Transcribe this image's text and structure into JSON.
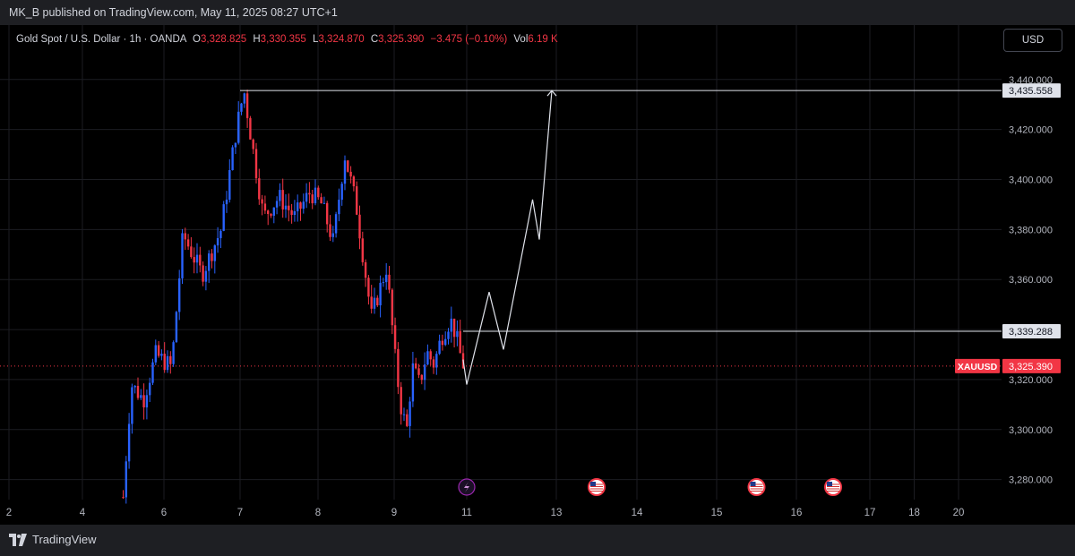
{
  "publisher": "MK_B published on TradingView.com, May 11, 2025 08:27 UTC+1",
  "legend": {
    "symbol": "Gold Spot / U.S. Dollar · 1h · OANDA",
    "open_label": "O",
    "open": "3,328.825",
    "high_label": "H",
    "high": "3,330.355",
    "low_label": "L",
    "low": "3,324.870",
    "close_label": "C",
    "close": "3,325.390",
    "change": "−3.475 (−0.10%)",
    "vol_label": "Vol",
    "vol": "6.19 K"
  },
  "currency": "USD",
  "footer": {
    "brand": "TradingView"
  },
  "colors": {
    "up": "#2962ff",
    "down": "#f23645",
    "line": "#e0e3eb",
    "background": "#000000"
  },
  "chart_data": {
    "type": "candlestick",
    "title": "",
    "symbol": "XAUUSD",
    "interval": "1h",
    "x_ticks": [
      {
        "day": 2,
        "label": "2"
      },
      {
        "day": 4,
        "label": "4"
      },
      {
        "day": 6,
        "label": "6"
      },
      {
        "day": 7,
        "label": "7"
      },
      {
        "day": 8,
        "label": "8"
      },
      {
        "day": 9,
        "label": "9"
      },
      {
        "day": 11,
        "label": "11"
      },
      {
        "day": 13,
        "label": "13"
      },
      {
        "day": 14,
        "label": "14"
      },
      {
        "day": 15,
        "label": "15"
      },
      {
        "day": 16,
        "label": "16"
      },
      {
        "day": 17,
        "label": "17"
      },
      {
        "day": 18,
        "label": "18"
      },
      {
        "day": 20,
        "label": "20"
      }
    ],
    "y_ticks": [
      "3,280.000",
      "3,300.000",
      "3,320.000",
      "3,340.000",
      "3,360.000",
      "3,380.000",
      "3,400.000",
      "3,420.000",
      "3,440.000"
    ],
    "ylim": [
      3272,
      3446
    ],
    "grid": true,
    "price_path": [
      [
        5.0,
        3273
      ],
      [
        5.2,
        3318
      ],
      [
        5.5,
        3312
      ],
      [
        5.8,
        3330
      ],
      [
        6.1,
        3325
      ],
      [
        6.25,
        3378
      ],
      [
        6.5,
        3362
      ],
      [
        6.75,
        3380
      ],
      [
        6.95,
        3420
      ],
      [
        7.05,
        3435.6
      ],
      [
        7.15,
        3415
      ],
      [
        7.3,
        3385
      ],
      [
        7.5,
        3393
      ],
      [
        7.7,
        3385
      ],
      [
        7.9,
        3395
      ],
      [
        8.05,
        3390
      ],
      [
        8.2,
        3375
      ],
      [
        8.35,
        3410
      ],
      [
        8.5,
        3390
      ],
      [
        8.7,
        3345
      ],
      [
        8.9,
        3365
      ],
      [
        9.05,
        3325
      ],
      [
        9.2,
        3308
      ],
      [
        9.35,
        3300
      ],
      [
        9.5,
        3325
      ],
      [
        9.7,
        3318
      ],
      [
        9.9,
        3331
      ],
      [
        10.1,
        3326
      ],
      [
        10.3,
        3337
      ],
      [
        10.55,
        3344
      ],
      [
        10.7,
        3338
      ],
      [
        10.85,
        3328
      ],
      [
        10.92,
        3325.39
      ]
    ],
    "horizontal_lines": [
      {
        "price": 3435.558,
        "label": "3,435.558",
        "from_day": 7.0
      },
      {
        "price": 3339.288,
        "label": "3,339.288",
        "from_day": 10.9
      }
    ],
    "current_price": {
      "symbol_label": "XAUUSD",
      "price": 3325.39,
      "label": "3,325.390"
    },
    "projection_path": [
      [
        10.9,
        3328
      ],
      [
        11.0,
        3318
      ],
      [
        11.5,
        3355
      ],
      [
        11.82,
        3332
      ],
      [
        12.47,
        3392
      ],
      [
        12.62,
        3376
      ],
      [
        12.9,
        3435.558
      ]
    ],
    "event_markers": [
      {
        "day": 11.0,
        "kind": "lightning"
      },
      {
        "day": 13.5,
        "kind": "us-flag"
      },
      {
        "day": 15.5,
        "kind": "us-flag"
      },
      {
        "day": 16.5,
        "kind": "us-flag"
      }
    ]
  }
}
